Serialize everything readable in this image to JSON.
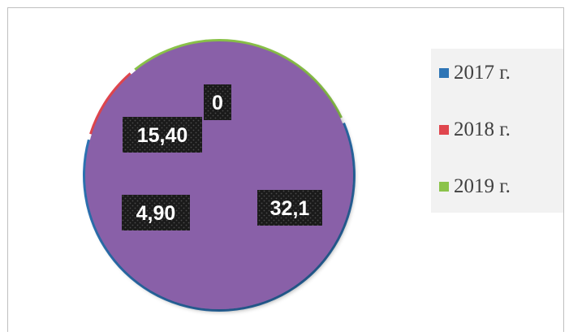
{
  "chart_data": {
    "type": "pie",
    "categories": [
      "2017 г.",
      "2018 г.",
      "2019 г."
    ],
    "colors": [
      "#2e75b6",
      "#e0464e",
      "#8bc34a"
    ],
    "inner_series": {
      "values": [
        0
      ],
      "color": "#8960a8"
    },
    "outer_ring": [
      {
        "category": "2017 г.",
        "value": 32.1
      },
      {
        "category": "2018 г.",
        "value": 4.9
      },
      {
        "category": "2019 г.",
        "value": 15.4
      }
    ],
    "data_labels": [
      "32,1",
      "4,90",
      "15,40",
      "0"
    ],
    "legend_position": "right",
    "label_style": "dark-pattern-box"
  }
}
